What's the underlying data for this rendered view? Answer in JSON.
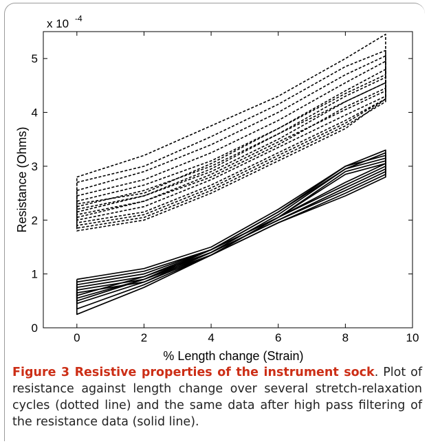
{
  "chart_data": {
    "type": "line",
    "title": "",
    "xlabel": "% Length change (Strain)",
    "ylabel": "Resistance (Ohms)",
    "y_exponent_label": "x 10",
    "y_exponent_power": "-4",
    "xlim": [
      -1,
      10
    ],
    "ylim": [
      0,
      5.5
    ],
    "x_ticks": [
      0,
      2,
      4,
      6,
      8,
      10
    ],
    "y_ticks": [
      0,
      1,
      2,
      3,
      4,
      5
    ],
    "x_tick_labels": [
      "0",
      "2",
      "4",
      "6",
      "8",
      "10"
    ],
    "y_tick_labels": [
      "0",
      "1",
      "2",
      "3",
      "4",
      "5"
    ],
    "grid": false,
    "series": [
      {
        "style": "dashed",
        "x": [
          0,
          2,
          4,
          6,
          8,
          9.2,
          9.2,
          8,
          6,
          4,
          2,
          0,
          0
        ],
        "y": [
          2.8,
          3.2,
          3.75,
          4.3,
          5.0,
          5.45,
          4.7,
          4.35,
          3.7,
          3.05,
          2.5,
          2.3,
          2.8
        ]
      },
      {
        "style": "dashed",
        "x": [
          0,
          2,
          4,
          6,
          8,
          9.2,
          9.2,
          8,
          6,
          4,
          2,
          0,
          0
        ],
        "y": [
          2.7,
          3.0,
          3.55,
          4.15,
          4.85,
          5.15,
          4.55,
          4.2,
          3.6,
          2.95,
          2.45,
          2.2,
          2.7
        ]
      },
      {
        "style": "dashed",
        "x": [
          0,
          2,
          4,
          6,
          8,
          9.2,
          9.2,
          8,
          6,
          4,
          2,
          0,
          0
        ],
        "y": [
          2.55,
          2.9,
          3.4,
          4.0,
          4.7,
          5.05,
          4.4,
          4.05,
          3.45,
          2.85,
          2.35,
          2.1,
          2.55
        ]
      },
      {
        "style": "dashed",
        "x": [
          0,
          2,
          4,
          6,
          8,
          9.2,
          9.2,
          8,
          6,
          4,
          2,
          0,
          0
        ],
        "y": [
          2.45,
          2.75,
          3.25,
          3.85,
          4.55,
          4.95,
          4.3,
          3.95,
          3.35,
          2.75,
          2.25,
          2.0,
          2.45
        ]
      },
      {
        "style": "dashed",
        "x": [
          0,
          2,
          4,
          6,
          8,
          9.2,
          9.2,
          8,
          6,
          4,
          2,
          0,
          0
        ],
        "y": [
          2.35,
          2.65,
          3.1,
          3.7,
          4.4,
          4.8,
          4.25,
          3.85,
          3.25,
          2.65,
          2.15,
          1.95,
          2.35
        ]
      },
      {
        "style": "dashed",
        "x": [
          0,
          2,
          4,
          6,
          8,
          9.2,
          9.2,
          8,
          6,
          4,
          2,
          0,
          0
        ],
        "y": [
          2.25,
          2.55,
          3.0,
          3.6,
          4.3,
          4.65,
          4.25,
          3.8,
          3.2,
          2.6,
          2.1,
          1.9,
          2.25
        ]
      },
      {
        "style": "dashed",
        "x": [
          0,
          2,
          4,
          6,
          8,
          9.2,
          9.2,
          8,
          6,
          4,
          2,
          0,
          0
        ],
        "y": [
          2.15,
          2.45,
          2.9,
          3.5,
          4.2,
          4.55,
          4.2,
          3.75,
          3.15,
          2.55,
          2.05,
          1.85,
          2.15
        ]
      },
      {
        "style": "dashed",
        "x": [
          0,
          2,
          4,
          6,
          8,
          9.2,
          9.2,
          8,
          6,
          4,
          2,
          0,
          0
        ],
        "y": [
          2.05,
          2.35,
          2.8,
          3.4,
          4.1,
          4.45,
          4.25,
          3.7,
          3.1,
          2.5,
          2.0,
          1.8,
          2.05
        ]
      },
      {
        "style": "solid",
        "x": [
          0,
          2,
          4,
          6,
          8,
          9.2,
          9.2,
          8,
          6,
          4,
          2,
          0,
          0
        ],
        "y": [
          0.9,
          1.1,
          1.5,
          2.2,
          3.0,
          3.3,
          2.8,
          2.45,
          1.95,
          1.35,
          0.75,
          0.25,
          0.9
        ]
      },
      {
        "style": "solid",
        "x": [
          0,
          2,
          4,
          6,
          8,
          9.2,
          9.2,
          8,
          6,
          4,
          2,
          0,
          0
        ],
        "y": [
          0.85,
          1.05,
          1.45,
          2.15,
          2.95,
          3.25,
          2.85,
          2.5,
          1.95,
          1.35,
          0.8,
          0.35,
          0.85
        ]
      },
      {
        "style": "solid",
        "x": [
          0,
          2,
          4,
          6,
          8,
          9.2,
          9.2,
          8,
          6,
          4,
          2,
          0,
          0
        ],
        "y": [
          0.8,
          1.0,
          1.45,
          2.15,
          3.0,
          3.2,
          2.9,
          2.55,
          2.0,
          1.4,
          0.85,
          0.45,
          0.8
        ]
      },
      {
        "style": "solid",
        "x": [
          0,
          2,
          4,
          6,
          8,
          9.2,
          9.2,
          8,
          6,
          4,
          2,
          0,
          0
        ],
        "y": [
          0.75,
          0.95,
          1.4,
          2.1,
          2.95,
          3.15,
          2.95,
          2.6,
          2.0,
          1.4,
          0.9,
          0.5,
          0.75
        ]
      },
      {
        "style": "solid",
        "x": [
          0,
          2,
          4,
          6,
          8,
          9.2,
          9.2,
          8,
          6,
          4,
          2,
          0,
          0
        ],
        "y": [
          0.7,
          0.9,
          1.35,
          2.05,
          2.9,
          3.1,
          3.0,
          2.65,
          2.05,
          1.45,
          0.9,
          0.55,
          0.7
        ]
      },
      {
        "style": "solid",
        "x": [
          0,
          2,
          4,
          6,
          8,
          9.2,
          9.2,
          8,
          6,
          4,
          2,
          0,
          0
        ],
        "y": [
          0.65,
          0.85,
          1.35,
          2.05,
          2.85,
          3.05,
          3.05,
          2.7,
          2.05,
          1.45,
          0.95,
          0.6,
          0.65
        ]
      }
    ],
    "caption_title": "Figure 3 Resistive properties of the instrument sock",
    "caption_body": ". Plot of resistance against length change over several stretch-relaxation cycles (dotted line) and the same data after high pass filtering of the resistance data (solid line)."
  }
}
